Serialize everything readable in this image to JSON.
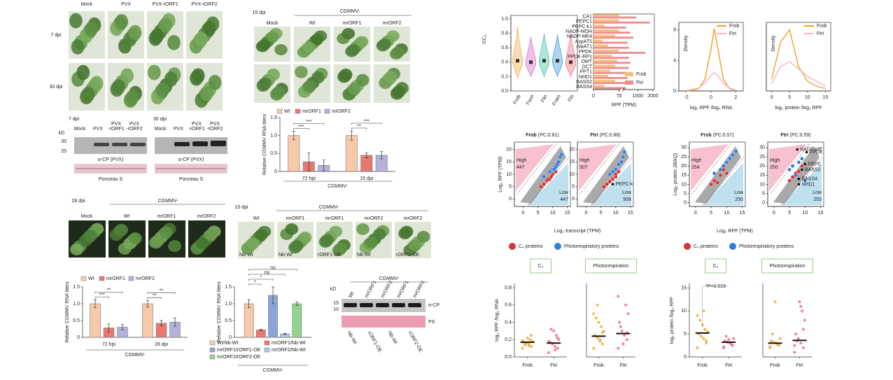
{
  "panel_a": {
    "columns": [
      "Mock",
      "PVX",
      "PVX-rORF1",
      "PVX-rORF2"
    ],
    "rows": [
      "7 dpi",
      "30 dpi"
    ]
  },
  "panel_b": {
    "unit": "kD",
    "markers": [
      35,
      25
    ],
    "blots": [
      {
        "time": "7 dpi",
        "lanes": [
          [
            "Mock"
          ],
          [
            "PVX"
          ],
          [
            "PVX",
            "-rORF1"
          ],
          [
            "PVX",
            "-rORF2"
          ]
        ],
        "antibody": "α-CP (PVX)",
        "stain": "Ponceau S"
      },
      {
        "time": "30 dpi",
        "lanes": [
          [
            "Mock"
          ],
          [
            "PVX"
          ],
          [
            "PVX",
            "-rORF1"
          ],
          [
            "PVX",
            "-rORF2"
          ]
        ],
        "antibody": "α-CP (PVX)",
        "stain": "Ponceau S"
      }
    ]
  },
  "panel_c": {
    "time": "15 dpi",
    "group": "CGMMV-",
    "columns": [
      "Mock",
      "Wt",
      "mrORF1",
      "mrORF2"
    ]
  },
  "panel_d": {
    "time": "28 dpi",
    "group": "CGMMV-",
    "columns": [
      "Mock",
      "Wt",
      "mrORF1",
      "mrORF2"
    ]
  },
  "panel_e": {
    "time": "15 dpi",
    "group": "CGMMV-",
    "columns": [
      "Wt",
      "mrORF1",
      "mrORF1",
      "mrORF2",
      "mrORF2"
    ],
    "hosts": [
      "Nb-Wt",
      "Nb-Wt",
      "rORF1-OE",
      "Nb-Wt",
      "rORF2-OE"
    ]
  },
  "panel_f": {
    "unit": "kD",
    "markers": [
      15,
      10
    ],
    "group": "CGMMV-",
    "lanes": [
      "Wt",
      "mrORF1",
      "mrORF2",
      "mrORF1",
      "mrORF2"
    ],
    "hosts": [
      "Nb-Wt",
      "rORF1-OE",
      "Nb-Wt",
      "rORF2-OE"
    ],
    "antibody": "α-CP",
    "stain": "PS"
  },
  "chart_data": [
    {
      "type": "bar",
      "y_label": "Relative CGMMV RNA titers",
      "group_label": "CGMMV-",
      "categories": [
        "72 hpi",
        "15 dpi"
      ],
      "series": [
        {
          "name": "Wt",
          "color": "#f8c9a9",
          "values": [
            1.0,
            1.0
          ],
          "errors": [
            0.12,
            0.13
          ]
        },
        {
          "name": "mrORF1",
          "color": "#e8786f",
          "values": [
            0.27,
            0.45
          ],
          "errors": [
            0.25,
            0.07
          ]
        },
        {
          "name": "mrORF2",
          "color": "#b4b1da",
          "values": [
            0.17,
            0.45
          ],
          "errors": [
            0.15,
            0.1
          ]
        }
      ],
      "ylim": [
        0,
        1.5
      ],
      "yticks": [
        0,
        0.5,
        {
          "value": 1,
          "label": "1.0"
        },
        1.5
      ],
      "annotations": [
        "***",
        "***",
        "**",
        "***"
      ]
    },
    {
      "type": "bar",
      "y_label": "Relative CGMMV RNA titers",
      "group_label": "CGMMV-",
      "categories": [
        "72 hpi",
        "28 dpi"
      ],
      "series": [
        {
          "name": "Wt",
          "color": "#f8c9a9",
          "values": [
            1.0,
            1.0
          ],
          "errors": [
            0.12,
            0.1
          ]
        },
        {
          "name": "mrORF1",
          "color": "#e8786f",
          "values": [
            0.28,
            0.42
          ],
          "errors": [
            0.12,
            0.08
          ]
        },
        {
          "name": "mrORF2",
          "color": "#b4b1da",
          "values": [
            0.3,
            0.45
          ],
          "errors": [
            0.08,
            0.12
          ]
        }
      ],
      "ylim": [
        0,
        1.5
      ],
      "yticks": [
        0,
        0.5,
        {
          "value": 1,
          "label": "1.0"
        },
        1.5
      ],
      "annotations": [
        "***",
        "**",
        "**",
        "**"
      ]
    },
    {
      "type": "bar",
      "y_label": "Relative CGMMV RNA titers",
      "group_label": "CGMMV-",
      "categories": [
        null
      ],
      "series": [
        {
          "name": "Wt/Nb-Wt",
          "color": "#f8c9a9",
          "values": [
            1.0
          ],
          "errors": [
            0.12
          ]
        },
        {
          "name": "mrORF1/Nb-Wt",
          "color": "#e8786f",
          "values": [
            0.22
          ],
          "errors": [
            0.02
          ]
        },
        {
          "name": "mrORF1/rORF1-OE",
          "color": "#8aa6d8",
          "values": [
            1.25
          ],
          "errors": [
            0.25
          ]
        },
        {
          "name": "mrORF2/Nb-Wt",
          "color": "#a9cde9",
          "values": [
            0.1
          ],
          "errors": [
            0.02
          ]
        },
        {
          "name": "mrORF2/rORF2-OE",
          "color": "#93d48c",
          "values": [
            1.0
          ],
          "errors": [
            0.05
          ]
        }
      ],
      "ylim": [
        0,
        1.5
      ],
      "yticks": [
        0,
        0.5,
        {
          "value": 1,
          "label": "1.0"
        },
        1.5
      ],
      "annotations": [
        "*",
        "*",
        "ns",
        "ns"
      ]
    },
    {
      "type": "violin",
      "y_label": "GC₃",
      "categories": [
        "Frob",
        "Fson",
        "Flin",
        "Fram",
        "Ftri"
      ],
      "colors": [
        "#f2b35a",
        "#d878c8",
        "#4fc7a8",
        "#4aa0e0",
        "#f07e8a"
      ],
      "medians": [
        0.42,
        0.4,
        0.42,
        0.42,
        0.4
      ],
      "min": [
        0.18,
        0.2,
        0.2,
        0.2,
        0.2
      ],
      "max": [
        0.9,
        0.75,
        0.8,
        0.78,
        0.8
      ],
      "ylim": [
        0,
        1.05
      ],
      "yticks": [
        {
          "value": 0,
          "label": "0.0"
        },
        0.2,
        0.4,
        0.6,
        0.8,
        {
          "value": 1,
          "label": "1.0"
        }
      ]
    },
    {
      "type": "bar",
      "orientation": "horizontal",
      "axis_break": true,
      "x_label": "RPF (TPM)",
      "categories": [
        "CA1",
        "PEPC1",
        "PEPC-k1",
        "NADP-MDH",
        "NADP-ME4",
        "AspAT5",
        "AlaAT1",
        "PPDK",
        "PPDK-RP1",
        "OMT",
        "DCT",
        "PPT1",
        "NHD1",
        "BASS2",
        "BASS4"
      ],
      "series": [
        {
          "name": "Frob",
          "color": "#f7c07a",
          "values": [
            70,
            70,
            30,
            70,
            60,
            25,
            40,
            70,
            50,
            65,
            60,
            45,
            40,
            60,
            30
          ]
        },
        {
          "name": "Ftri",
          "color": "#ef8c8c",
          "values": [
            900,
            1800,
            200,
            500,
            700,
            300,
            400,
            1500,
            400,
            500,
            400,
            300,
            300,
            400,
            200
          ]
        }
      ],
      "xlim": [
        0,
        2100
      ],
      "xticks": [
        0,
        70,
        1000,
        2000
      ]
    },
    {
      "type": "line",
      "x_label": "log₂ RPF /log₂ RNA",
      "y_label": "Density",
      "x": [
        -2,
        -1.5,
        -1,
        -0.5,
        0,
        0.25,
        0.5,
        1,
        1.5,
        2
      ],
      "series": [
        {
          "name": "Frob",
          "color": "#f0a020",
          "values": [
            0,
            0.1,
            0.3,
            1.5,
            5.5,
            8.2,
            6,
            1.5,
            0.3,
            0.05
          ]
        },
        {
          "name": "Ftri",
          "color": "#f4b4c4",
          "values": [
            0.1,
            0.2,
            0.4,
            1,
            2,
            2.4,
            2.1,
            1,
            0.4,
            0.1
          ]
        }
      ],
      "xlim": [
        -2.6,
        2.6
      ],
      "xticks": [
        -2,
        0,
        2
      ],
      "ylim": [
        0,
        9
      ],
      "yticks": [
        0,
        4,
        8
      ]
    },
    {
      "type": "line",
      "x_label": "log₂ protein /log₂ RPF",
      "y_label": "Density",
      "x": [
        0,
        2.5,
        5,
        7.5,
        10,
        12.5,
        15
      ],
      "series": [
        {
          "name": "Frob",
          "color": "#f0a020",
          "values": [
            0.05,
            0.2,
            0.25,
            0.1,
            0.04,
            0.02,
            0.01
          ]
        },
        {
          "name": "Ftri",
          "color": "#f4b4c4",
          "values": [
            0.03,
            0.1,
            0.12,
            0.09,
            0.06,
            0.04,
            0.02
          ]
        }
      ],
      "xlim": [
        -1.5,
        16.5
      ],
      "xticks": [
        0,
        5,
        10,
        15
      ],
      "ylim": [
        0,
        0.28
      ]
    },
    {
      "type": "scatter",
      "title": "Frob",
      "subtitle": "(PC:0.81)",
      "x_label": "Log₂ transcript (TPM)",
      "y_label": "Log₂ RPF (TPM)",
      "high": {
        "label": "High",
        "count": 447
      },
      "low": {
        "label": "Low",
        "count": 447
      },
      "series": [
        {
          "name": "C₄ proteins",
          "color": "#e03030",
          "x": [
            6,
            7,
            8,
            9,
            10,
            11,
            9.5,
            8.5
          ],
          "y": [
            5,
            6,
            7.5,
            8,
            10,
            11,
            9,
            8
          ]
        },
        {
          "name": "Photorespiratory proteins",
          "color": "#2f7fe0",
          "x": [
            7,
            9,
            10,
            11,
            12,
            12.5,
            11.5,
            10.5,
            13
          ],
          "y": [
            9,
            11,
            12,
            13,
            15,
            17,
            14,
            12,
            18
          ]
        }
      ],
      "xlim": [
        -3,
        16
      ],
      "xticks": [
        0,
        5,
        10,
        15
      ],
      "ylim": [
        -3,
        23
      ],
      "yticks": [
        0,
        5,
        10,
        15,
        20
      ]
    },
    {
      "type": "scatter",
      "title": "Ftri",
      "subtitle": "(PC:0.88)",
      "high": {
        "label": "High",
        "count": 507
      },
      "low": {
        "label": "Low",
        "count": 508
      },
      "series": [
        {
          "color": "#e03030",
          "x": [
            6,
            7,
            8,
            9,
            10,
            11,
            10
          ],
          "y": [
            5,
            6,
            7,
            8,
            10,
            11,
            9
          ]
        },
        {
          "color": "#2f7fe0",
          "x": [
            8,
            9,
            10,
            11,
            12,
            12.5,
            13
          ],
          "y": [
            10,
            11,
            12,
            14,
            15,
            17,
            19
          ]
        }
      ],
      "labeled_points": [
        {
          "name": "PEPC-k",
          "x": 9,
          "y": 6
        }
      ],
      "xlim": [
        -3,
        16
      ],
      "xticks": [
        0,
        5,
        10,
        15
      ],
      "ylim": [
        -3,
        23
      ],
      "yticks": [
        0,
        5,
        10,
        15,
        20
      ]
    },
    {
      "type": "scatter",
      "title": "Frob",
      "subtitle": "(PC:0.57)",
      "x_label": "Log₂ RPF (TPM)",
      "y_label": "Log₂ protein (iBAQ)",
      "high": {
        "label": "High",
        "count": 254
      },
      "low": {
        "label": "Low",
        "count": 250
      },
      "series": [
        {
          "name": "C₄ proteins",
          "color": "#e03030",
          "x": [
            5,
            6,
            7,
            8,
            9,
            10
          ],
          "y": [
            10,
            12,
            11,
            15,
            18,
            16
          ]
        },
        {
          "name": "Photorespiratory proteins",
          "color": "#2f7fe0",
          "x": [
            6,
            8,
            9,
            10,
            11,
            12,
            13
          ],
          "y": [
            16,
            18,
            20,
            22,
            24,
            26,
            28
          ]
        }
      ],
      "xlim": [
        -2,
        16
      ],
      "xticks": [
        0,
        5,
        10,
        15
      ],
      "ylim": [
        -2,
        33
      ],
      "yticks": [
        0,
        5,
        10,
        15,
        20,
        25,
        30
      ]
    },
    {
      "type": "scatter",
      "title": "Ftri",
      "subtitle": "(PC:0.59)",
      "high": {
        "label": "High",
        "count": 250
      },
      "low": {
        "label": "Low",
        "count": 253
      },
      "series": [
        {
          "color": "#e03030",
          "x": [
            5,
            6,
            7,
            8,
            9
          ],
          "y": [
            12,
            14,
            16,
            17,
            20
          ]
        },
        {
          "color": "#2f7fe0",
          "x": [
            5,
            6,
            7,
            8,
            9,
            10
          ],
          "y": [
            18,
            20,
            15,
            22,
            24,
            12
          ]
        }
      ],
      "labeled_points": [
        {
          "name": "NADP-ME",
          "x": 7.5,
          "y": 29
        },
        {
          "name": "PPDK",
          "x": 10.5,
          "y": 27.5
        },
        {
          "name": "PEPC",
          "x": 10,
          "y": 21
        },
        {
          "name": "BASS2",
          "x": 9,
          "y": 18
        },
        {
          "name": "BASS4",
          "x": 8,
          "y": 13
        },
        {
          "name": "NHD1",
          "x": 8,
          "y": 10
        }
      ],
      "xlim": [
        -2,
        16
      ],
      "xticks": [
        0,
        5,
        10,
        15
      ],
      "ylim": [
        -2,
        33
      ],
      "yticks": [
        0,
        5,
        10,
        15,
        20,
        25,
        30
      ]
    },
    {
      "type": "strip",
      "title": "C₄",
      "y_label": "log₂ RPF /log₂ RNA",
      "categories": [
        "Frob",
        "Ftri"
      ],
      "colors": [
        "#f2a93b",
        "#ef6e8a"
      ],
      "values": [
        [
          0.1,
          0.12,
          0.15,
          0.16,
          0.17,
          0.18,
          0.2,
          0.22,
          0.14,
          0.19,
          0.25,
          0.13
        ],
        [
          0.05,
          0.1,
          0.12,
          0.15,
          0.17,
          0.2,
          0.25,
          0.3,
          0.32,
          0.18,
          0.22,
          0.08
        ]
      ],
      "medians": [
        0.17,
        0.16
      ],
      "ylim": [
        0,
        0.85
      ],
      "yticks": [
        {
          "value": 0,
          "label": "0.0"
        },
        0.2,
        0.4,
        0.6,
        0.8
      ]
    },
    {
      "type": "strip",
      "title": "Photorespiration",
      "categories": [
        "Frob",
        "Ftri"
      ],
      "colors": [
        "#f2a93b",
        "#ef6e8a"
      ],
      "values": [
        [
          0.1,
          0.15,
          0.2,
          0.22,
          0.25,
          0.3,
          0.35,
          0.4,
          0.45,
          0.5,
          0.28,
          0.18,
          0.6
        ],
        [
          0.1,
          0.2,
          0.25,
          0.3,
          0.4,
          0.5,
          0.6,
          0.15,
          0.35,
          0.7,
          0.28
        ]
      ],
      "medians": [
        0.24,
        0.27
      ],
      "ylim": [
        0,
        0.85
      ]
    },
    {
      "type": "strip",
      "title": "C₄",
      "y_label": "log₂ protein /log₂ RPF",
      "annotation": "*P=0.019",
      "categories": [
        "Frob",
        "Ftri"
      ],
      "colors": [
        "#f2a93b",
        "#ef6e8a"
      ],
      "values": [
        [
          2,
          3,
          4,
          4.5,
          5,
          5.5,
          6,
          7,
          8,
          9,
          3.5,
          10
        ],
        [
          2,
          2.5,
          3,
          3.2,
          3.5,
          4,
          2.8,
          3.8,
          4.5,
          2.2
        ]
      ],
      "medians": [
        5.2,
        3.2
      ],
      "ylim": [
        0,
        16
      ],
      "yticks": [
        0,
        5,
        10,
        15
      ]
    },
    {
      "type": "strip",
      "title": "Photorespiration",
      "categories": [
        "Frob",
        "Ftri"
      ],
      "colors": [
        "#f2a93b",
        "#ef6e8a"
      ],
      "values": [
        [
          2,
          2.5,
          3,
          3.2,
          3.5,
          4,
          2.8,
          12,
          5,
          2.2
        ],
        [
          1,
          2,
          3,
          4,
          5,
          8,
          10,
          12,
          3.5,
          2.5,
          6,
          11
        ]
      ],
      "medians": [
        3,
        3.6
      ],
      "ylim": [
        0,
        16
      ]
    }
  ]
}
